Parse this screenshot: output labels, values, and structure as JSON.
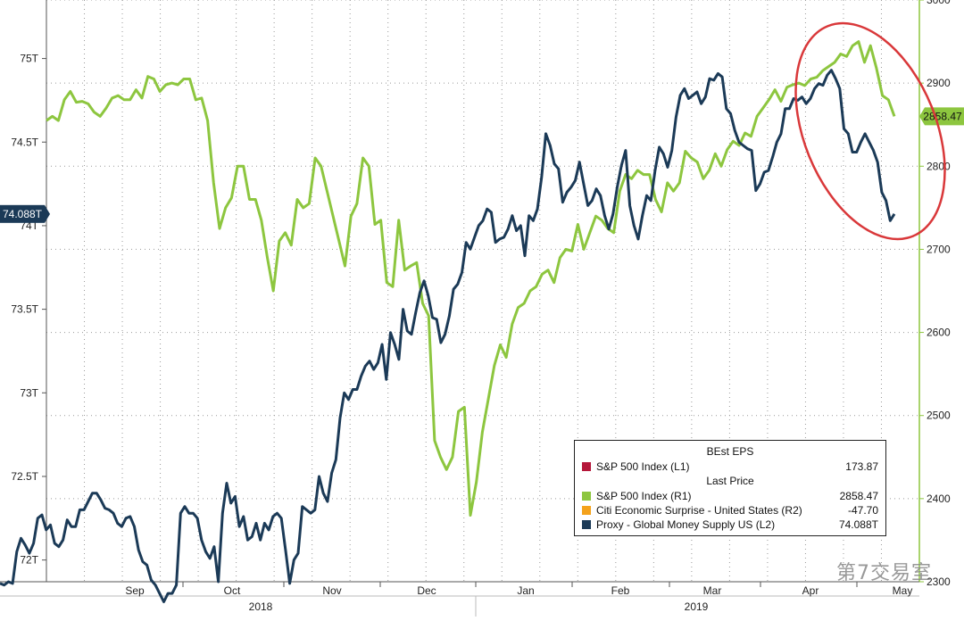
{
  "chart_data": {
    "type": "line",
    "x_labels": [
      "Sep",
      "Oct",
      "Nov",
      "Dec",
      "Jan",
      "Feb",
      "Mar",
      "Apr",
      "May"
    ],
    "year_labels": [
      "2018",
      "2019"
    ],
    "left_axis": {
      "ticks": [
        "75T",
        "74.5T",
        "74T",
        "73.5T",
        "73T",
        "72.5T",
        "72T"
      ],
      "ylim": [
        71.87,
        75.35
      ]
    },
    "right_axis": {
      "ticks": [
        "3000",
        "2900",
        "2800",
        "2700",
        "2600",
        "2500",
        "2400",
        "2300"
      ],
      "ylim": [
        2300,
        3000
      ]
    },
    "last_value_tags": {
      "left": "74.088T",
      "right": "2858.47"
    },
    "series": [
      {
        "name": "S&P 500 Index (R1)",
        "axis": "right",
        "color": "#8dc63f",
        "values": [
          2855,
          2860,
          2855,
          2880,
          2890,
          2877,
          2878,
          2875,
          2865,
          2860,
          2870,
          2882,
          2885,
          2880,
          2880,
          2892,
          2882,
          2908,
          2905,
          2890,
          2898,
          2900,
          2898,
          2905,
          2905,
          2880,
          2882,
          2855,
          2780,
          2725,
          2750,
          2762,
          2800,
          2800,
          2760,
          2760,
          2735,
          2690,
          2650,
          2710,
          2720,
          2705,
          2760,
          2750,
          2755,
          2810,
          2800,
          2770,
          2740,
          2710,
          2680,
          2740,
          2755,
          2810,
          2800,
          2730,
          2735,
          2660,
          2655,
          2735,
          2675,
          2680,
          2684,
          2635,
          2620,
          2470,
          2450,
          2435,
          2450,
          2505,
          2510,
          2380,
          2420,
          2480,
          2520,
          2560,
          2585,
          2570,
          2610,
          2630,
          2635,
          2650,
          2655,
          2670,
          2675,
          2660,
          2690,
          2700,
          2698,
          2730,
          2700,
          2720,
          2740,
          2735,
          2725,
          2720,
          2770,
          2790,
          2785,
          2795,
          2790,
          2790,
          2760,
          2745,
          2780,
          2770,
          2780,
          2818,
          2810,
          2805,
          2785,
          2795,
          2815,
          2800,
          2820,
          2830,
          2825,
          2840,
          2836,
          2860,
          2870,
          2880,
          2892,
          2878,
          2895,
          2898,
          2900,
          2897,
          2905,
          2907,
          2915,
          2920,
          2925,
          2935,
          2932,
          2945,
          2950,
          2925,
          2945,
          2918,
          2885,
          2880,
          2860
        ]
      },
      {
        "name": "Proxy - Global Money Supply US (L2)",
        "axis": "left",
        "color": "#1b3a57",
        "values": [
          71.86,
          71.85,
          71.87,
          71.86,
          72.05,
          72.13,
          72.09,
          72.04,
          72.1,
          72.25,
          72.27,
          72.18,
          72.21,
          72.1,
          72.08,
          72.12,
          72.24,
          72.2,
          72.2,
          72.3,
          72.3,
          72.35,
          72.4,
          72.4,
          72.36,
          72.31,
          72.3,
          72.28,
          72.22,
          72.2,
          72.25,
          72.26,
          72.2,
          72.06,
          71.99,
          71.97,
          71.88,
          71.85,
          71.8,
          71.75,
          71.8,
          71.8,
          71.85,
          72.28,
          72.32,
          72.28,
          72.28,
          72.25,
          72.12,
          72.05,
          72.01,
          72.08,
          71.87,
          72.28,
          72.46,
          72.34,
          72.38,
          72.2,
          72.26,
          72.12,
          72.14,
          72.22,
          72.12,
          72.22,
          72.18,
          72.26,
          72.28,
          72.25,
          72.06,
          71.86,
          72.0,
          72.04,
          72.32,
          72.3,
          72.28,
          72.3,
          72.5,
          72.4,
          72.35,
          72.52,
          72.6,
          72.85,
          73.0,
          72.96,
          73.02,
          73.02,
          73.1,
          73.16,
          73.19,
          73.14,
          73.18,
          73.29,
          73.08,
          73.36,
          73.29,
          73.2,
          73.5,
          73.37,
          73.35,
          73.48,
          73.6,
          73.67,
          73.58,
          73.45,
          73.44,
          73.3,
          73.35,
          73.46,
          73.62,
          73.65,
          73.72,
          73.9,
          73.86,
          73.93,
          74.0,
          74.03,
          74.1,
          74.08,
          73.9,
          73.92,
          73.93,
          73.98,
          74.06,
          73.97,
          74.0,
          73.82,
          74.06,
          74.03,
          74.1,
          74.29,
          74.55,
          74.48,
          74.37,
          74.34,
          74.14,
          74.2,
          74.23,
          74.27,
          74.38,
          74.25,
          74.12,
          74.15,
          74.22,
          74.18,
          74.06,
          73.98,
          74.07,
          74.23,
          74.36,
          74.45,
          74.12,
          74.0,
          73.92,
          74.06,
          74.18,
          74.15,
          74.33,
          74.47,
          74.43,
          74.35,
          74.45,
          74.65,
          74.78,
          74.82,
          74.76,
          74.78,
          74.8,
          74.73,
          74.77,
          74.88,
          74.87,
          74.91,
          74.89,
          74.7,
          74.67,
          74.57,
          74.5,
          74.48,
          74.46,
          74.45,
          74.21,
          74.25,
          74.32,
          74.33,
          74.41,
          74.5,
          74.55,
          74.7,
          74.7,
          74.76,
          74.75,
          74.77,
          74.73,
          74.76,
          74.82,
          74.85,
          74.84,
          74.9,
          74.93,
          74.88,
          74.82,
          74.58,
          74.55,
          74.44,
          74.44,
          74.5,
          74.55,
          74.5,
          74.45,
          74.38,
          74.2,
          74.15,
          74.03,
          74.07
        ]
      }
    ],
    "legend": {
      "header1": "BEst EPS",
      "header2": "Last Price",
      "items": [
        {
          "label": "S&P 500 Index  (L1)",
          "value": "173.87",
          "color": "#b5173a"
        },
        {
          "label": "S&P 500 Index  (R1)",
          "value": "2858.47",
          "color": "#8dc63f"
        },
        {
          "label": "Citi Economic Surprise - United States  (R2)",
          "value": "-47.70",
          "color": "#f4a21c"
        },
        {
          "label": "Proxy - Global Money Supply US  (L2)",
          "value": "74.088T",
          "color": "#1b3a57"
        }
      ]
    },
    "annotation": "red ellipse highlighting Apr-May divergence"
  },
  "watermark": "第7交易室"
}
